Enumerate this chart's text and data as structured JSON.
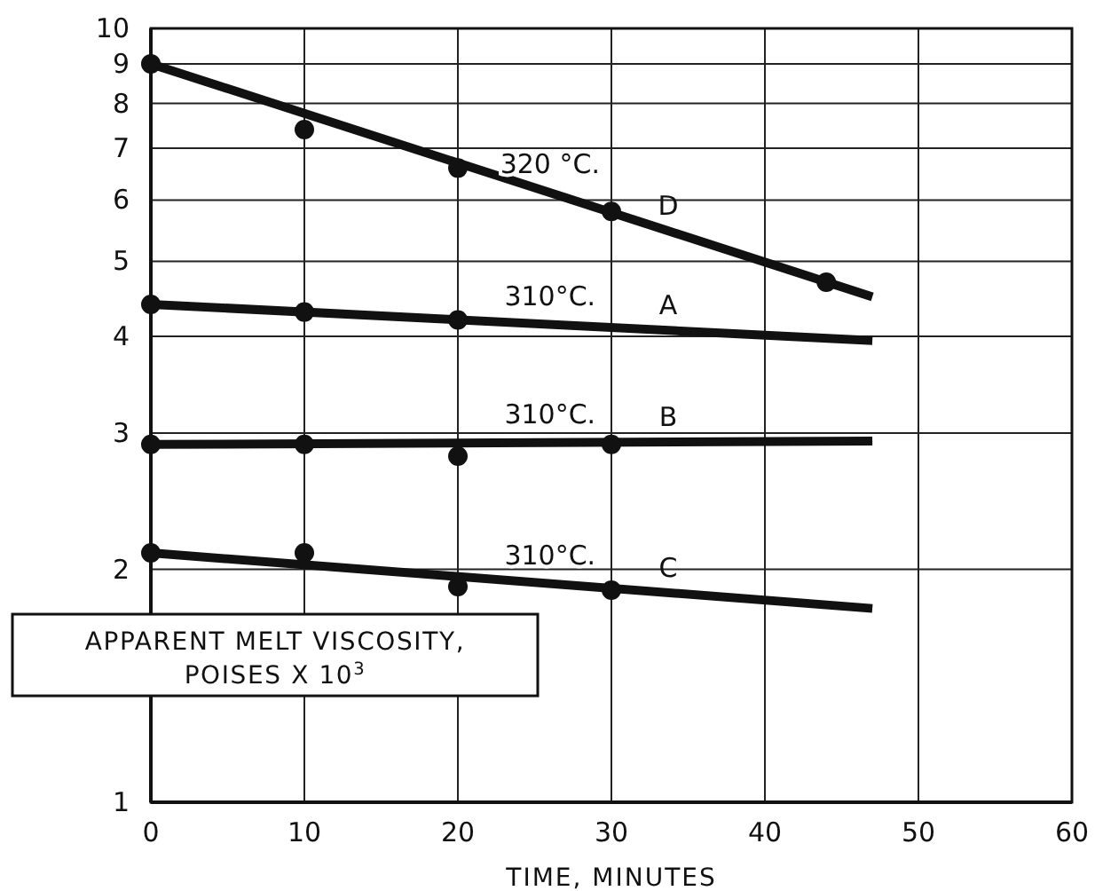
{
  "chart_data": {
    "type": "scatter",
    "xlabel": "TIME, MINUTES",
    "ylabel": "APPARENT MELT VISCOSITY, POISES X 10$^{3}$",
    "log": "y",
    "grid": true,
    "xlim": [
      0,
      60
    ],
    "xticks": [
      0,
      10,
      20,
      30,
      40,
      50,
      60
    ],
    "ylim": [
      1,
      10
    ],
    "yticks": [
      1,
      2,
      3,
      4,
      5,
      6,
      7,
      8,
      9,
      10
    ],
    "series": [
      {
        "marker": "circle",
        "color": "#111111",
        "x": [
          0,
          10,
          20,
          30,
          44
        ],
        "values": [
          9.0,
          7.4,
          6.6,
          5.8,
          4.7
        ]
      },
      {
        "type": "line",
        "name": "D",
        "marker": "none",
        "color": "#111111",
        "x": [
          0,
          47
        ],
        "values": [
          9.0,
          4.5
        ]
      },
      {
        "marker": "circle",
        "color": "#111111",
        "x": [
          0,
          10,
          20
        ],
        "values": [
          4.4,
          4.3,
          4.2
        ]
      },
      {
        "type": "line",
        "name": "A",
        "marker": "none",
        "color": "#111111",
        "x": [
          0,
          47
        ],
        "values": [
          4.4,
          3.95
        ]
      },
      {
        "marker": "circle",
        "color": "#111111",
        "x": [
          0,
          10,
          20,
          30
        ],
        "values": [
          2.9,
          2.9,
          2.8,
          2.9
        ]
      },
      {
        "type": "line",
        "name": "B",
        "marker": "none",
        "color": "#111111",
        "x": [
          0,
          47
        ],
        "values": [
          2.9,
          2.93
        ]
      },
      {
        "marker": "circle",
        "color": "#111111",
        "x": [
          0,
          10,
          20,
          30
        ],
        "values": [
          2.1,
          2.1,
          1.9,
          1.88
        ]
      },
      {
        "type": "line",
        "name": "C",
        "marker": "none",
        "color": "#111111",
        "x": [
          0,
          47
        ],
        "values": [
          2.1,
          1.78
        ]
      }
    ],
    "annotations": [
      "320 °C.",
      "310°C.",
      "310°C.",
      "310°C."
    ]
  }
}
